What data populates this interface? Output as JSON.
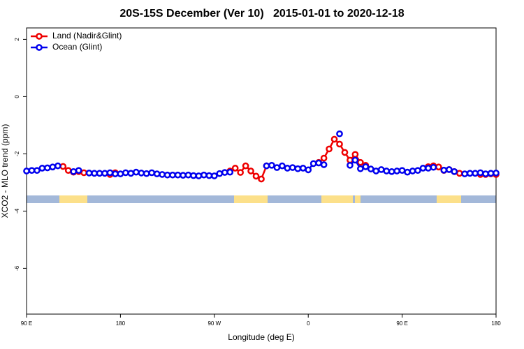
{
  "chart_data": {
    "type": "line",
    "title": "20S-15S December (Ver 10)   2015-01-01 to 2020-12-18",
    "xlabel": "Longitude (deg E)",
    "ylabel": "XCO2 - MLO trend (ppm)",
    "x": [
      90,
      95,
      100,
      105,
      110,
      115,
      120,
      125,
      130,
      135,
      140,
      145,
      150,
      155,
      160,
      165,
      170,
      175,
      180,
      185,
      190,
      195,
      200,
      205,
      210,
      215,
      220,
      225,
      230,
      235,
      240,
      245,
      250,
      255,
      260,
      265,
      270,
      275,
      280,
      285,
      290,
      295,
      300,
      305,
      310,
      315,
      320,
      325,
      330,
      335,
      340,
      345,
      350,
      355,
      360,
      365,
      370,
      375,
      380,
      385,
      390,
      395,
      400,
      405,
      410,
      415,
      420,
      425,
      430,
      435,
      440,
      445,
      450,
      455,
      460,
      465,
      470,
      475,
      480,
      485,
      490,
      495,
      500,
      505,
      510,
      515,
      520,
      525,
      530,
      535,
      540
    ],
    "series": [
      {
        "name": "Land (Nadir&Glint)",
        "color": "#ee0000",
        "values": [
          null,
          null,
          null,
          null,
          null,
          null,
          null,
          -2.44,
          -2.58,
          -2.64,
          -2.62,
          -2.66,
          null,
          null,
          null,
          null,
          -2.72,
          -2.66,
          null,
          null,
          null,
          null,
          null,
          null,
          null,
          null,
          null,
          null,
          null,
          null,
          null,
          null,
          null,
          null,
          null,
          null,
          null,
          null,
          null,
          -2.6,
          -2.5,
          -2.65,
          -2.42,
          -2.6,
          -2.78,
          -2.88,
          -2.42,
          null,
          null,
          null,
          null,
          null,
          null,
          null,
          null,
          null,
          -2.3,
          -2.15,
          -1.83,
          -1.49,
          -1.66,
          -1.95,
          -2.22,
          -2.02,
          -2.3,
          -2.4,
          null,
          null,
          null,
          null,
          null,
          null,
          null,
          null,
          null,
          null,
          null,
          -2.45,
          -2.42,
          -2.46,
          -2.58,
          -2.55,
          -2.62,
          -2.68,
          null,
          null,
          null,
          -2.72,
          -2.72,
          -2.7,
          -2.72
        ]
      },
      {
        "name": "Ocean (Glint)",
        "color": "#0000ee",
        "values": [
          -2.6,
          -2.58,
          -2.58,
          -2.5,
          -2.49,
          -2.46,
          -2.42,
          null,
          null,
          -2.62,
          -2.58,
          null,
          -2.67,
          -2.68,
          -2.68,
          -2.68,
          -2.66,
          -2.7,
          -2.7,
          -2.66,
          -2.68,
          -2.64,
          -2.67,
          -2.69,
          -2.66,
          -2.7,
          -2.72,
          -2.74,
          -2.74,
          -2.74,
          -2.75,
          -2.74,
          -2.76,
          -2.77,
          -2.74,
          -2.76,
          -2.77,
          -2.69,
          -2.65,
          -2.64,
          null,
          null,
          null,
          null,
          null,
          null,
          -2.42,
          -2.4,
          -2.48,
          -2.42,
          -2.5,
          -2.48,
          -2.52,
          -2.5,
          -2.56,
          -2.34,
          -2.32,
          -2.38,
          null,
          null,
          -1.3,
          null,
          -2.4,
          -2.22,
          -2.52,
          -2.45,
          -2.53,
          -2.6,
          -2.55,
          -2.6,
          -2.62,
          -2.6,
          -2.58,
          -2.64,
          -2.6,
          -2.58,
          -2.5,
          -2.5,
          -2.47,
          null,
          -2.57,
          -2.55,
          -2.62,
          null,
          -2.7,
          -2.68,
          -2.68,
          -2.66,
          -2.7,
          -2.68,
          -2.67
        ]
      }
    ],
    "xlim": [
      90,
      540
    ],
    "xticks": [
      {
        "value": 90,
        "label": "90 E"
      },
      180,
      {
        "value": 270,
        "label": "90 W"
      },
      {
        "value": 360,
        "label": "0"
      },
      {
        "value": 450,
        "label": "90 E"
      },
      {
        "value": 540,
        "label": "180"
      }
    ],
    "ylim": [
      -7.6,
      2.4
    ],
    "yticks": [
      -6,
      -4,
      -2,
      0,
      2
    ],
    "legend": "top-left"
  }
}
